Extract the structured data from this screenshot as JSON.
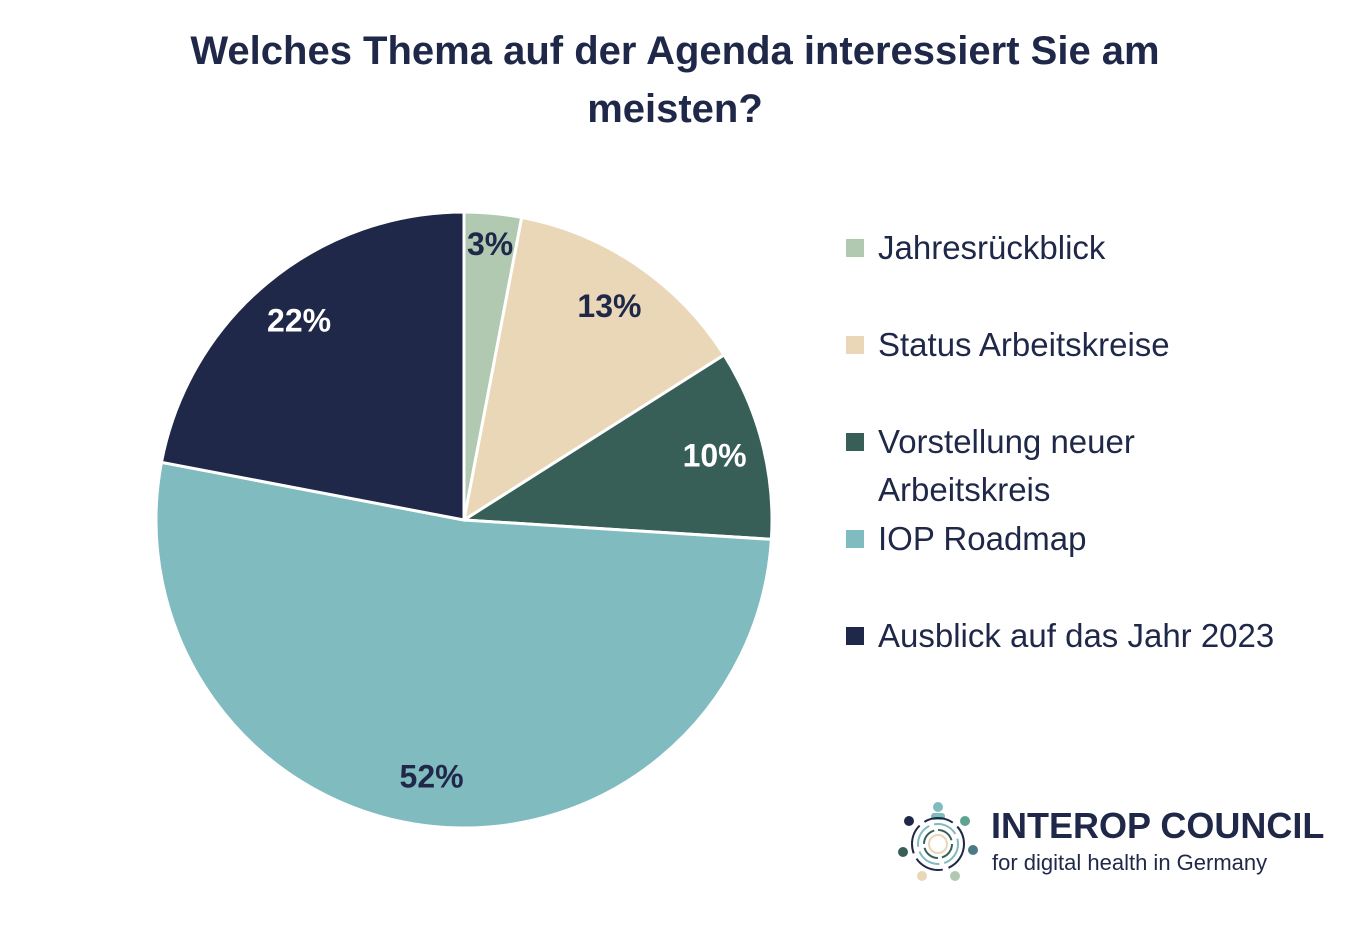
{
  "chart_data": {
    "type": "pie",
    "title": "Welches Thema auf der Agenda interessiert Sie am meisten?",
    "categories": [
      "Jahresrückblick",
      "Status Arbeitskreise",
      "Vorstellung neuer Arbeitskreis",
      "IOP Roadmap",
      "Ausblick auf das Jahr 2023"
    ],
    "values": [
      3,
      13,
      10,
      52,
      22
    ],
    "data_labels": [
      "3%",
      "13%",
      "10%",
      "52%",
      "22%"
    ],
    "colors": [
      "#b0c9b0",
      "#e9d7b8",
      "#375f58",
      "#80bbbf",
      "#1f2849"
    ],
    "label_colors": [
      "#1f2849",
      "#1f2849",
      "#ffffff",
      "#1f2849",
      "#ffffff"
    ],
    "legend_position": "right",
    "start": "top, clockwise"
  },
  "logo": {
    "name": "INTEROP COUNCIL",
    "tagline": "for digital health in Germany"
  }
}
